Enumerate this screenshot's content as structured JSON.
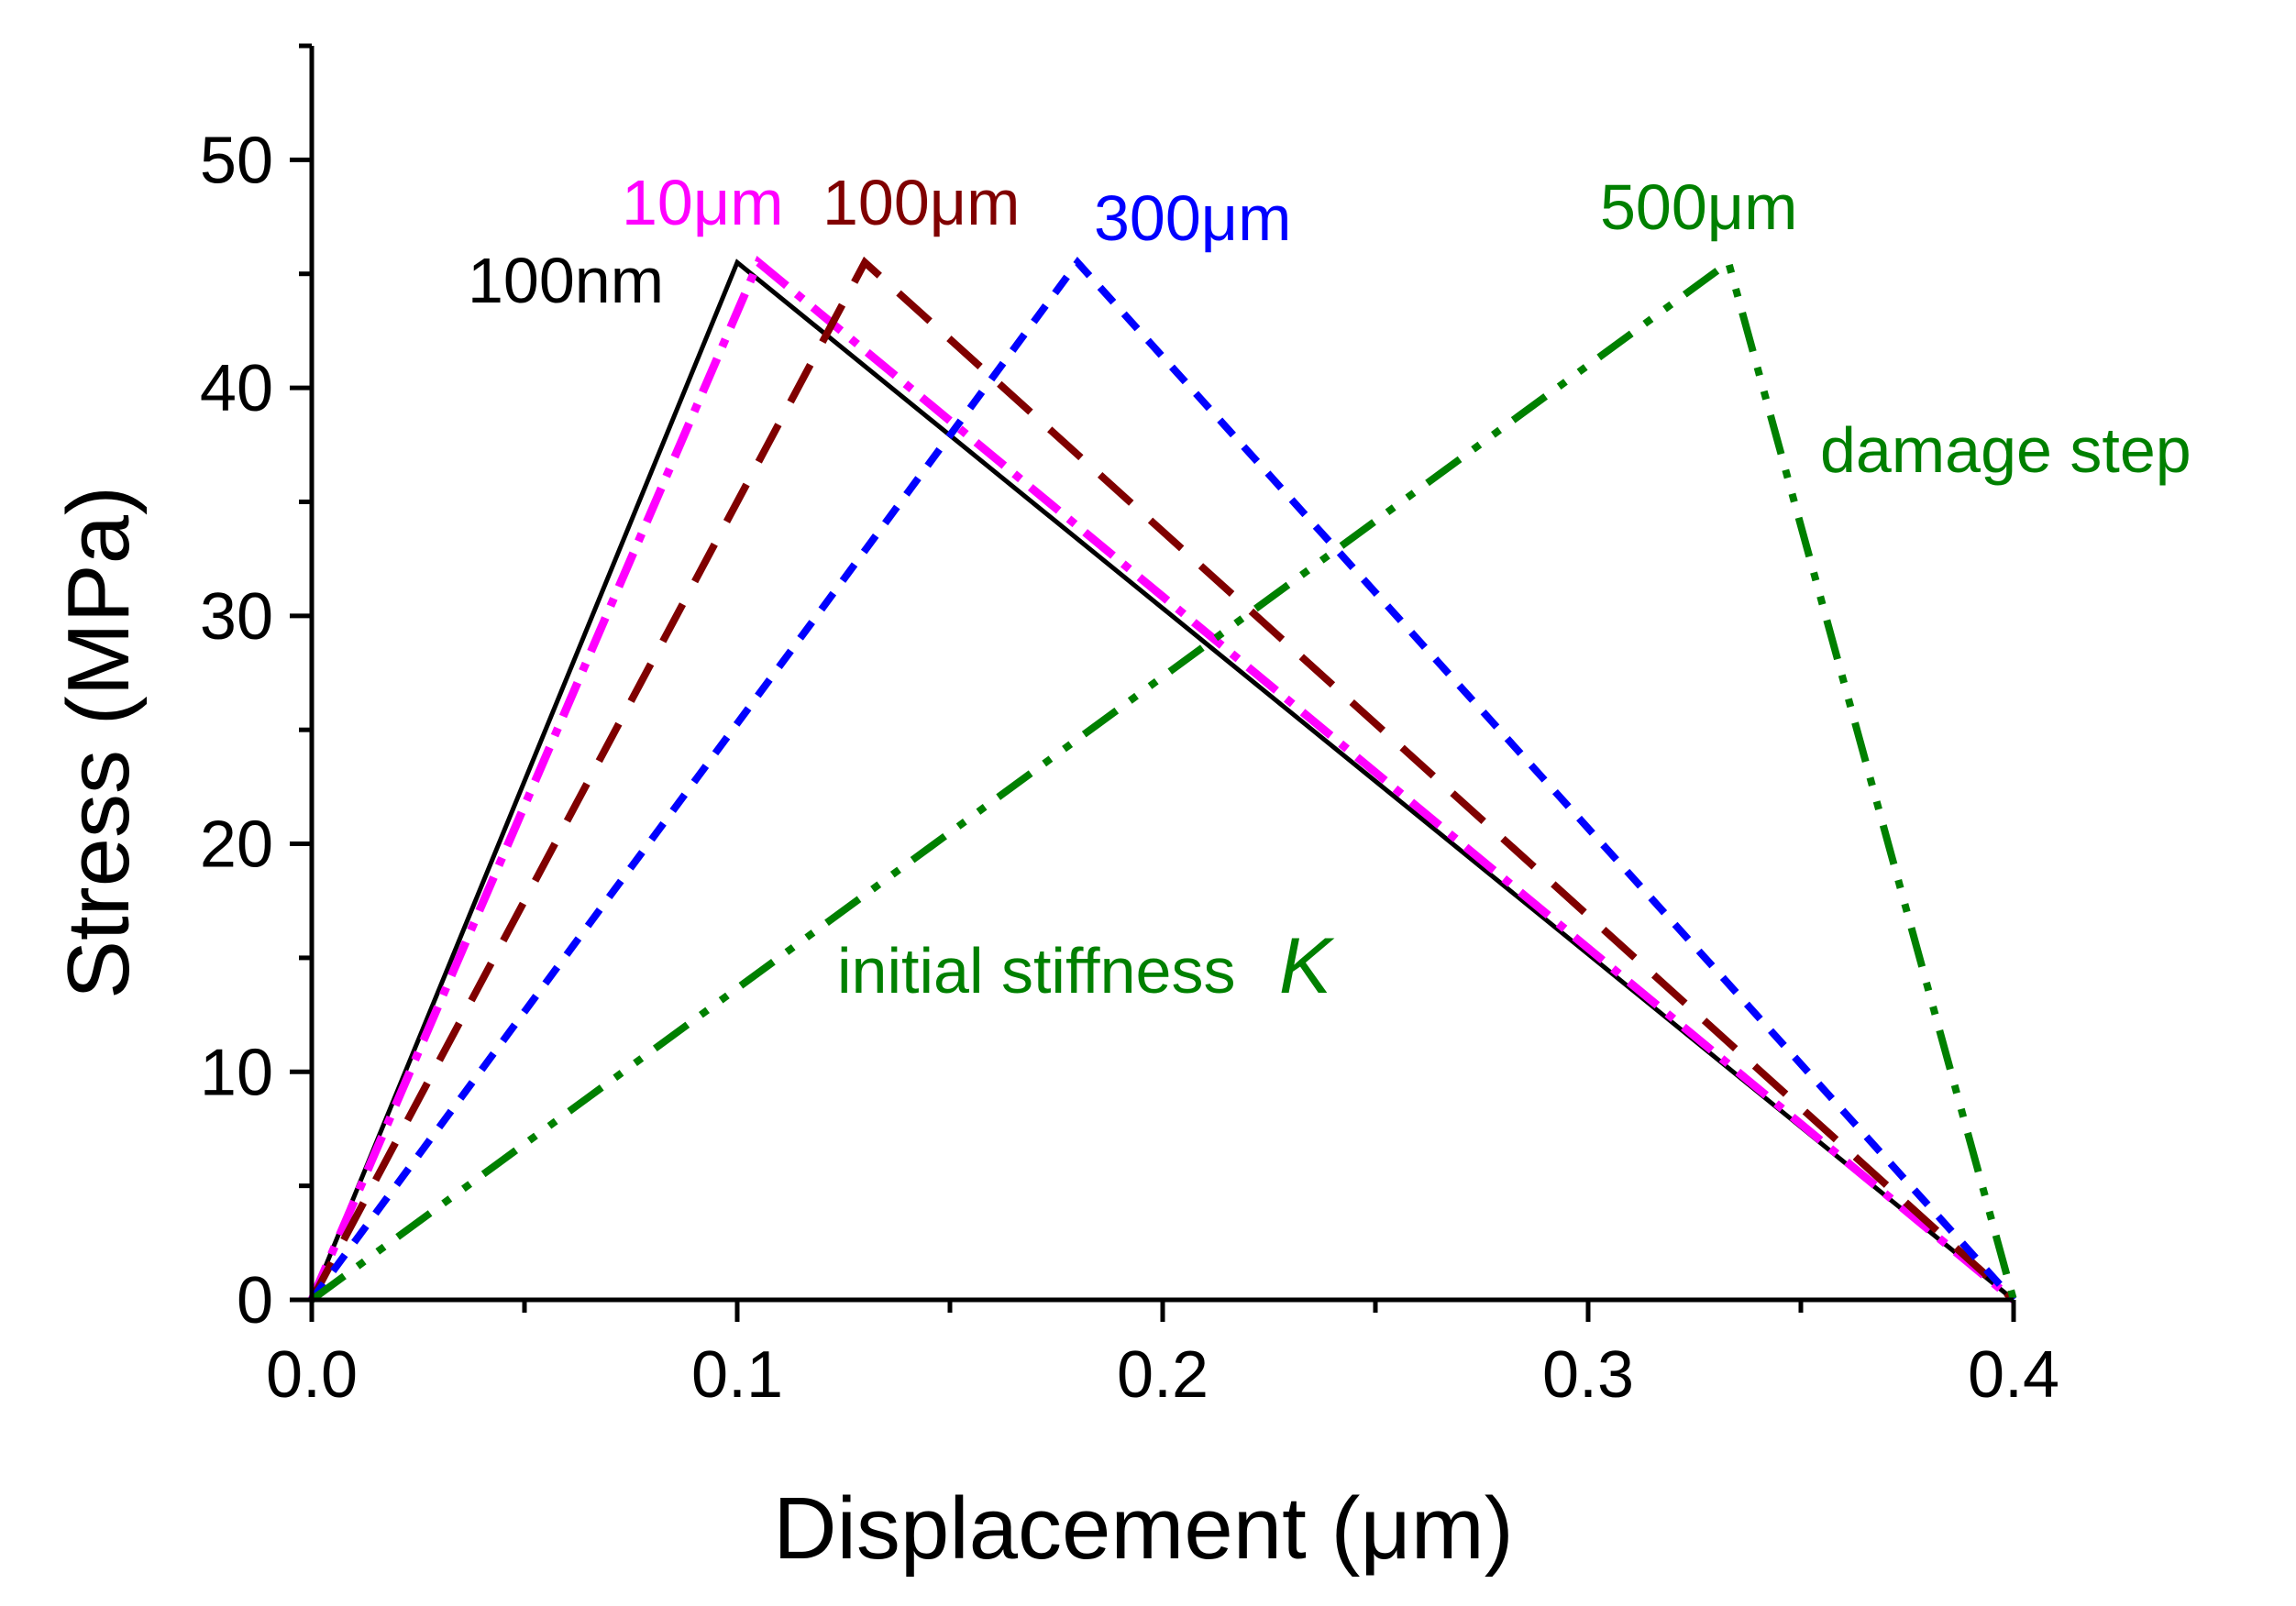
{
  "chart_data": {
    "type": "line",
    "title": "",
    "xlabel": "Displacement (μm)",
    "ylabel": "Stress (MPa)",
    "xlim": [
      0,
      0.4
    ],
    "ylim": [
      0,
      55
    ],
    "xticks": [
      "0.0",
      "0.1",
      "0.2",
      "0.3",
      "0.4"
    ],
    "xtick_values": [
      0,
      0.1,
      0.2,
      0.3,
      0.4
    ],
    "yticks": [
      "0",
      "10",
      "20",
      "30",
      "40",
      "50"
    ],
    "ytick_values": [
      0,
      10,
      20,
      30,
      40,
      50
    ],
    "grid": false,
    "series": [
      {
        "name": "100nm",
        "color": "#000000",
        "style": "solid",
        "x": [
          0,
          0.1,
          0.4
        ],
        "y": [
          0,
          45.5,
          0
        ]
      },
      {
        "name": "10μm",
        "color": "#ff00ff",
        "style": "dashdot",
        "x": [
          0,
          0.105,
          0.4
        ],
        "y": [
          0,
          45.5,
          0
        ]
      },
      {
        "name": "100μm",
        "color": "#800000",
        "style": "dash",
        "x": [
          0,
          0.13,
          0.4
        ],
        "y": [
          0,
          45.5,
          0
        ]
      },
      {
        "name": "300μm",
        "color": "#0000ff",
        "style": "shortdash",
        "x": [
          0,
          0.18,
          0.4
        ],
        "y": [
          0,
          45.5,
          0
        ]
      },
      {
        "name": "500μm",
        "color": "#008000",
        "style": "dashdotdot",
        "x": [
          0,
          0.333,
          0.4
        ],
        "y": [
          0,
          45.5,
          0
        ]
      }
    ],
    "annotations": [
      {
        "text": "damage step",
        "color": "#008000"
      },
      {
        "text": "initial stiffness",
        "symbol": "K",
        "color": "#008000"
      }
    ]
  }
}
